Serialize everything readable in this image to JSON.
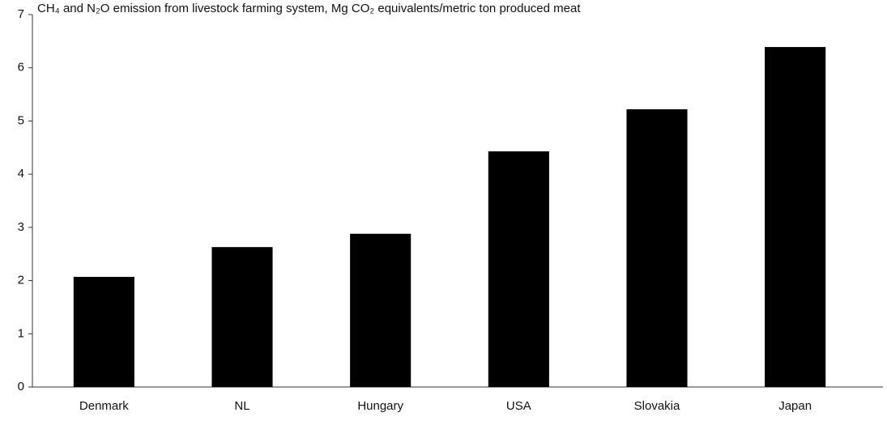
{
  "chart_data": {
    "type": "bar",
    "title": "CH₄ and N₂O emission from livestock farming system, Mg CO₂ equivalents/metric ton produced meat",
    "categories": [
      "Denmark",
      "NL",
      "Hungary",
      "USA",
      "Slovakia",
      "Japan"
    ],
    "values": [
      2.07,
      2.63,
      2.88,
      4.43,
      5.22,
      6.39
    ],
    "color": "#000000",
    "ylim": [
      0,
      7
    ],
    "yticks": [
      0,
      1,
      2,
      3,
      4,
      5,
      6,
      7
    ],
    "grid": false
  }
}
